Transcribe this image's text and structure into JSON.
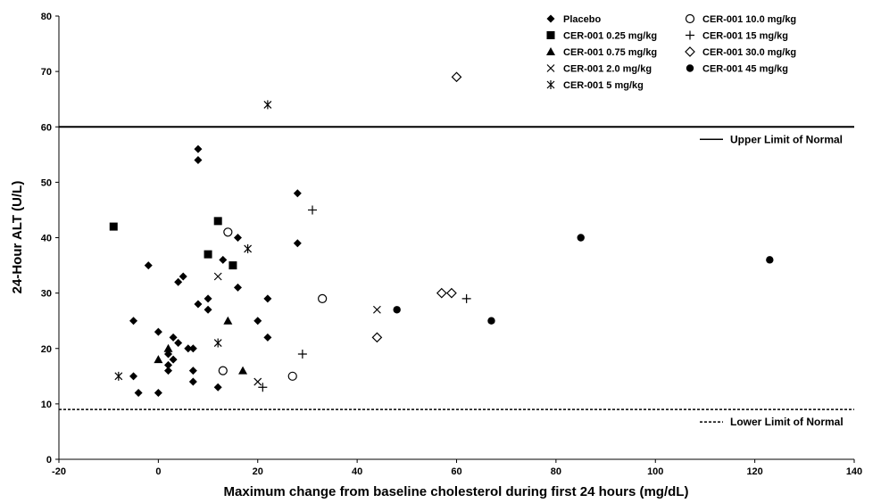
{
  "chart_data": {
    "type": "scatter",
    "xlabel": "Maximum change from baseline cholesterol during first 24 hours (mg/dL)",
    "ylabel": "24-Hour ALT (U/L)",
    "xlim": [
      -20,
      140
    ],
    "ylim": [
      0,
      80
    ],
    "x_ticks": [
      -20,
      0,
      20,
      40,
      60,
      80,
      100,
      120,
      140
    ],
    "y_ticks": [
      0,
      10,
      20,
      30,
      40,
      50,
      60,
      70,
      80
    ],
    "grid": false,
    "legend_position": "top-right",
    "reference_lines": [
      {
        "name": "Upper Limit of Normal",
        "y": 60,
        "style": "solid"
      },
      {
        "name": "Lower Limit of Normal",
        "y": 9,
        "style": "dashed"
      }
    ],
    "series": [
      {
        "name": "Placebo",
        "marker": "diamond-filled",
        "points": [
          [
            8,
            56
          ],
          [
            8,
            54
          ],
          [
            28,
            48
          ],
          [
            16,
            40
          ],
          [
            28,
            39
          ],
          [
            13,
            36
          ],
          [
            -2,
            35
          ],
          [
            5,
            33
          ],
          [
            4,
            32
          ],
          [
            16,
            31
          ],
          [
            10,
            29
          ],
          [
            22,
            29
          ],
          [
            10,
            27
          ],
          [
            8,
            28
          ],
          [
            -5,
            25
          ],
          [
            20,
            25
          ],
          [
            0,
            23
          ],
          [
            22,
            22
          ],
          [
            3,
            22
          ],
          [
            4,
            21
          ],
          [
            6,
            20
          ],
          [
            7,
            20
          ],
          [
            2,
            19
          ],
          [
            3,
            18
          ],
          [
            2,
            17
          ],
          [
            2,
            16
          ],
          [
            7,
            16
          ],
          [
            -5,
            15
          ],
          [
            7,
            14
          ],
          [
            12,
            13
          ],
          [
            -4,
            12
          ],
          [
            0,
            12
          ]
        ]
      },
      {
        "name": "CER-001 0.25 mg/kg",
        "marker": "square-filled",
        "points": [
          [
            -9,
            42
          ],
          [
            12,
            43
          ],
          [
            10,
            37
          ],
          [
            15,
            35
          ]
        ]
      },
      {
        "name": "CER-001 0.75 mg/kg",
        "marker": "triangle-filled",
        "points": [
          [
            14,
            25
          ],
          [
            2,
            20
          ],
          [
            0,
            18
          ],
          [
            17,
            16
          ]
        ]
      },
      {
        "name": "CER-001 2.0 mg/kg",
        "marker": "x",
        "points": [
          [
            12,
            33
          ],
          [
            44,
            27
          ],
          [
            20,
            14
          ]
        ]
      },
      {
        "name": "CER-001 5 mg/kg",
        "marker": "asterisk",
        "points": [
          [
            22,
            64
          ],
          [
            18,
            38
          ],
          [
            12,
            21
          ],
          [
            -8,
            15
          ]
        ]
      },
      {
        "name": "CER-001 10.0 mg/kg",
        "marker": "circle-open",
        "points": [
          [
            14,
            41
          ],
          [
            33,
            29
          ],
          [
            13,
            16
          ],
          [
            27,
            15
          ]
        ]
      },
      {
        "name": "CER-001 15 mg/kg",
        "marker": "plus",
        "points": [
          [
            31,
            45
          ],
          [
            62,
            29
          ],
          [
            29,
            19
          ],
          [
            21,
            13
          ]
        ]
      },
      {
        "name": "CER-001 30.0 mg/kg",
        "marker": "diamond-open",
        "points": [
          [
            60,
            69
          ],
          [
            57,
            30
          ],
          [
            59,
            30
          ],
          [
            44,
            22
          ]
        ]
      },
      {
        "name": "CER-001 45 mg/kg",
        "marker": "circle-filled",
        "points": [
          [
            85,
            40
          ],
          [
            123,
            36
          ],
          [
            48,
            27
          ],
          [
            67,
            25
          ]
        ]
      }
    ]
  }
}
